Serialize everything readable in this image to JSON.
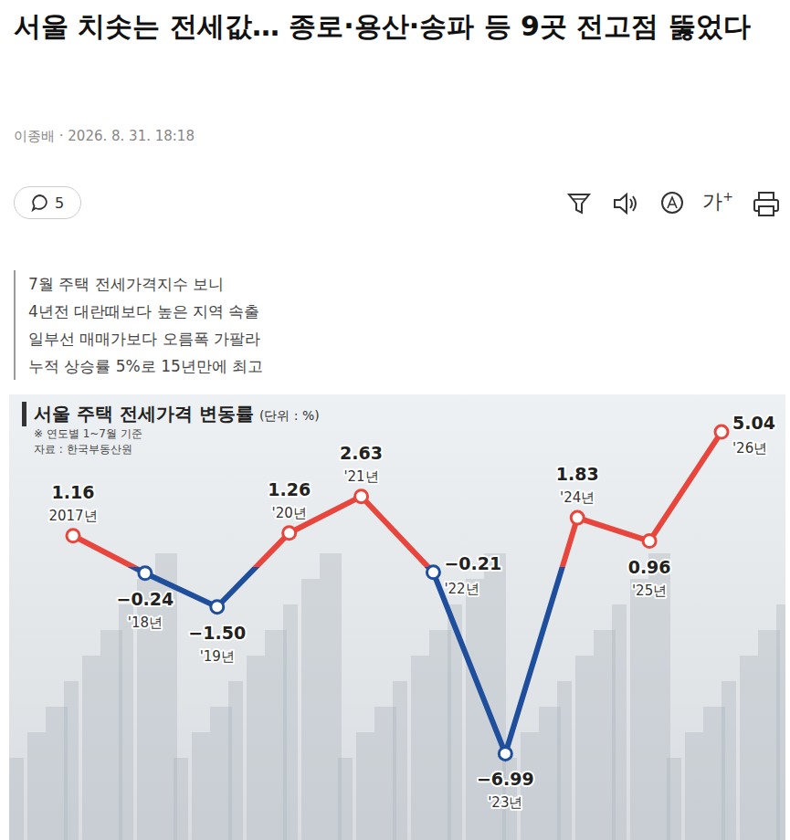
{
  "headline": "서울 치솟는 전세값… 종로·용산·송파 등 9곳 전고점 뚫었다",
  "byline": "이종배 · 2026. 8. 31. 18:18",
  "comment_count": 5,
  "font_button": "가+",
  "summary": [
    "7월 주택 전세가격지수 보니",
    "4년전 대란때보다 높은 지역 속출",
    "일부선 매매가보다 오름폭 가팔라",
    "누적 상승률 5%로 15년만에 최고"
  ],
  "chart_data": {
    "type": "line",
    "title": "서울 주택 전세가격 변동률",
    "subtitle": "(단위 : %)",
    "annotations": [
      "※ 연도별 1~7월 기준",
      "자료 : 한국부동산원"
    ],
    "categories": [
      "2017년",
      "'18년",
      "'19년",
      "'20년",
      "'21년",
      "'22년",
      "'23년",
      "'24년",
      "'25년",
      "'26년"
    ],
    "values": [
      1.16,
      -0.24,
      -1.5,
      1.26,
      2.63,
      -0.21,
      -6.99,
      1.83,
      0.96,
      5.04
    ],
    "value_labels": [
      "1.16",
      "−0.24",
      "−1.50",
      "1.26",
      "2.63",
      "−0.21",
      "−6.99",
      "1.83",
      "0.96",
      "5.04"
    ],
    "colors": [
      "#e8453c",
      "#1f4e9c",
      "#1f4e9c",
      "#e8453c",
      "#e8453c",
      "#1f4e9c",
      "#1f4e9c",
      "#e8453c",
      "#e8453c",
      "#e8453c"
    ],
    "ylim": [
      -8,
      6
    ],
    "tick_labels": false,
    "data_labels": true,
    "grid": false,
    "marker": "circle"
  }
}
